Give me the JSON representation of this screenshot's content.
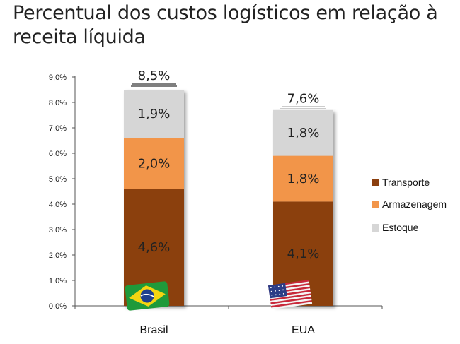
{
  "title": "Percentual dos custos logísticos em relação à receita líquida",
  "chart_data": {
    "type": "bar",
    "stacked": true,
    "categories": [
      "Brasil",
      "EUA"
    ],
    "series": [
      {
        "name": "Transporte",
        "values": [
          4.6,
          4.1
        ],
        "labels": [
          "4,6%",
          "4,1%"
        ],
        "color": "#8b3f0e"
      },
      {
        "name": "Armazenagem",
        "values": [
          2.0,
          1.8
        ],
        "labels": [
          "2,0%",
          "1,8%"
        ],
        "color": "#f2954a"
      },
      {
        "name": "Estoque",
        "values": [
          1.9,
          1.8
        ],
        "labels": [
          "1,9%",
          "1,8%"
        ],
        "color": "#d6d6d6"
      }
    ],
    "totals": [
      "8,5%",
      "7,6%"
    ],
    "total_values": [
      8.5,
      7.6
    ],
    "ylim": [
      0,
      9
    ],
    "yticks": [
      "0,0%",
      "1,0%",
      "2,0%",
      "3,0%",
      "4,0%",
      "5,0%",
      "6,0%",
      "7,0%",
      "8,0%",
      "9,0%"
    ],
    "legend_position": "right",
    "flags": [
      "brazil-flag-icon",
      "usa-flag-icon"
    ]
  }
}
